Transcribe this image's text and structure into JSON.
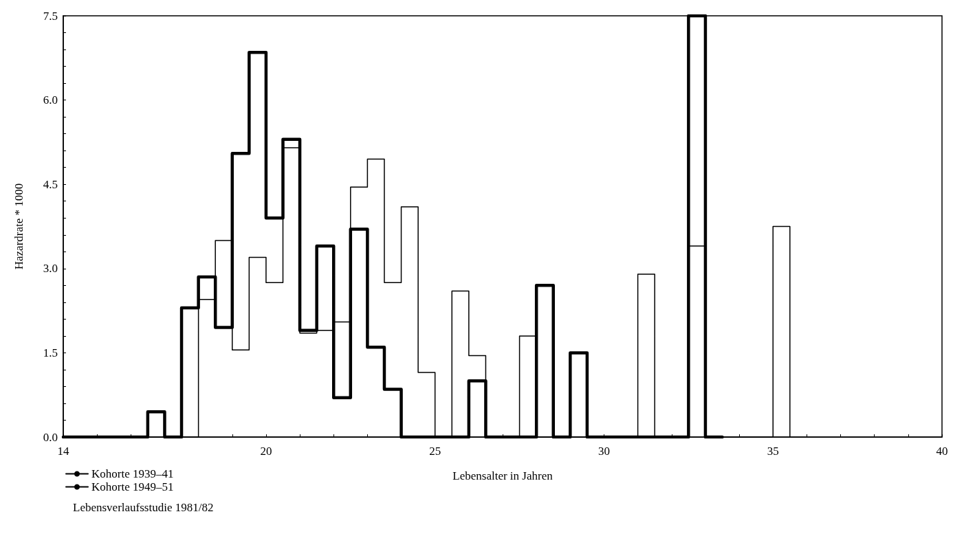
{
  "chart_data": {
    "type": "step",
    "xlabel": "Lebensalter in Jahren",
    "ylabel": "Hazardrate * 1000",
    "xlim": [
      14,
      40
    ],
    "xticks": [
      14,
      {
        "value": 15,
        "label": null
      },
      {
        "value": 16,
        "label": null
      },
      {
        "value": 17,
        "label": null
      },
      {
        "value": 18,
        "label": null
      },
      {
        "value": 19,
        "label": null
      },
      20,
      {
        "value": 21,
        "label": null
      },
      {
        "value": 22,
        "label": null
      },
      {
        "value": 23,
        "label": null
      },
      {
        "value": 24,
        "label": null
      },
      25,
      {
        "value": 26,
        "label": null
      },
      {
        "value": 27,
        "label": null
      },
      {
        "value": 28,
        "label": null
      },
      {
        "value": 29,
        "label": null
      },
      30,
      {
        "value": 31,
        "label": null
      },
      {
        "value": 32,
        "label": null
      },
      {
        "value": 33,
        "label": null
      },
      {
        "value": 34,
        "label": null
      },
      35,
      {
        "value": 36,
        "label": null
      },
      {
        "value": 37,
        "label": null
      },
      {
        "value": 38,
        "label": null
      },
      {
        "value": 39,
        "label": null
      },
      40
    ],
    "ylim": [
      0,
      7.5
    ],
    "yticks": [
      {
        "value": 0,
        "label": "0.0"
      },
      {
        "value": 0.3,
        "label": null
      },
      {
        "value": 0.6,
        "label": null
      },
      {
        "value": 0.9,
        "label": null
      },
      {
        "value": 1.2,
        "label": null
      },
      {
        "value": 1.5,
        "label": "1.5"
      },
      {
        "value": 1.8,
        "label": null
      },
      {
        "value": 2.1,
        "label": null
      },
      {
        "value": 2.4,
        "label": null
      },
      {
        "value": 2.7,
        "label": null
      },
      {
        "value": 3,
        "label": "3.0"
      },
      {
        "value": 3.3,
        "label": null
      },
      {
        "value": 3.6,
        "label": null
      },
      {
        "value": 3.9,
        "label": null
      },
      {
        "value": 4.2,
        "label": null
      },
      {
        "value": 4.5,
        "label": "4.5"
      },
      {
        "value": 4.8,
        "label": null
      },
      {
        "value": 5.1,
        "label": null
      },
      {
        "value": 5.4,
        "label": null
      },
      {
        "value": 5.7,
        "label": null
      },
      {
        "value": 6,
        "label": "6.0"
      },
      {
        "value": 6.3,
        "label": null
      },
      {
        "value": 6.6,
        "label": null
      },
      {
        "value": 6.9,
        "label": null
      },
      {
        "value": 7.2,
        "label": null
      },
      {
        "value": 7.5,
        "label": "7.5"
      }
    ],
    "grid": false,
    "legend": "bottom left",
    "marker": "none",
    "line_style": "solid",
    "annotations": [
      "Lebensverlaufsstudie 1981/82"
    ],
    "series": [
      {
        "name": "Kohorte 1939–41",
        "color": "#000000",
        "x": [
          14,
          14.5,
          15,
          15.5,
          16,
          16.5,
          17,
          17.5,
          18,
          18.5,
          19,
          19.5,
          20,
          20.5,
          21,
          21.5,
          22,
          22.5,
          23,
          23.5,
          24,
          24.5,
          25,
          25.5,
          26,
          26.5,
          27,
          27.5,
          28,
          28.5,
          29,
          29.5,
          30,
          30.5,
          31,
          31.5,
          32,
          32.5,
          33,
          33.5,
          34,
          34.5,
          35,
          35.5
        ],
        "values": [
          0,
          0,
          0,
          0,
          0,
          0,
          0,
          0,
          2.45,
          3.5,
          1.55,
          3.2,
          2.75,
          5.15,
          1.85,
          1.9,
          2.05,
          4.45,
          4.95,
          2.75,
          4.1,
          1.15,
          0,
          2.6,
          1.45,
          0,
          0,
          1.8,
          0,
          0,
          0,
          0,
          0,
          0,
          2.9,
          0,
          0,
          3.4,
          0,
          0,
          0,
          0,
          3.75,
          0
        ]
      },
      {
        "name": "Kohorte 1949–51",
        "color": "#000000",
        "x": [
          14,
          14.5,
          15,
          15.5,
          16,
          16.5,
          17,
          17.5,
          18,
          18.5,
          19,
          19.5,
          20,
          20.5,
          21,
          21.5,
          22,
          22.5,
          23,
          23.5,
          24,
          24.5,
          25,
          25.5,
          26,
          26.5,
          27,
          27.5,
          28,
          28.5,
          29,
          29.5,
          30,
          30.5,
          31,
          31.5,
          32,
          32.5,
          33,
          33.5
        ],
        "values": [
          0,
          0,
          0,
          0,
          0,
          0.45,
          0,
          2.3,
          2.85,
          1.95,
          5.05,
          6.85,
          3.9,
          5.3,
          1.9,
          3.4,
          0.7,
          3.7,
          1.6,
          0.85,
          0,
          0,
          0,
          0,
          1.0,
          0,
          0,
          0,
          2.7,
          0,
          1.5,
          0,
          0,
          0,
          0,
          0,
          0,
          7.5,
          0,
          0
        ]
      }
    ]
  }
}
